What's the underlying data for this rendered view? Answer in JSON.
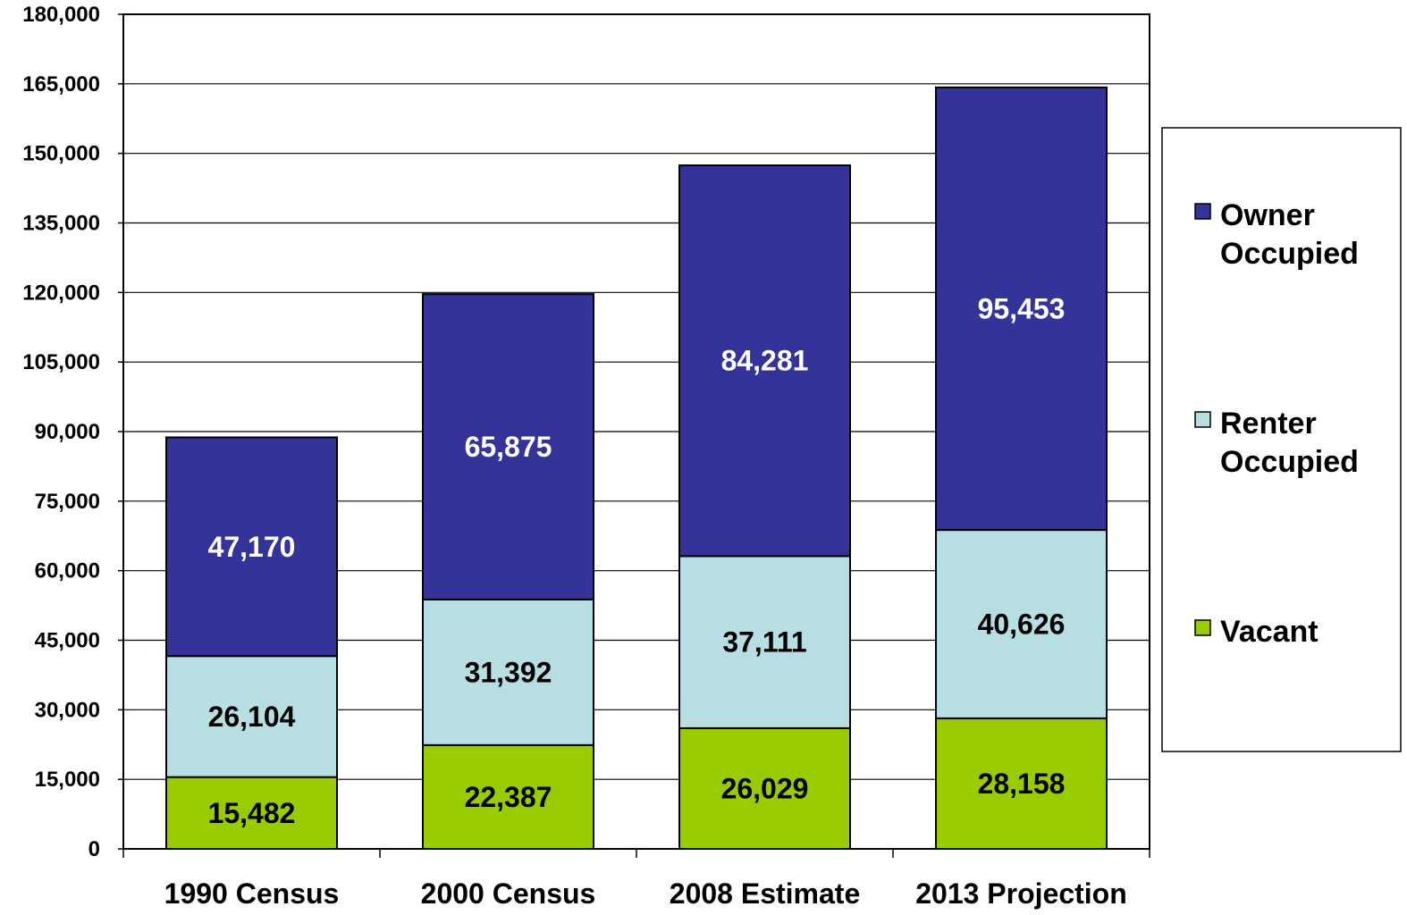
{
  "chart_data": {
    "type": "bar",
    "stacked": true,
    "categories": [
      "1990 Census",
      "2000 Census",
      "2008 Estimate",
      "2013 Projection"
    ],
    "series": [
      {
        "name": "Vacant",
        "values": [
          15482,
          22387,
          26029,
          28158
        ],
        "labels": [
          "15,482",
          "22,387",
          "26,029",
          "28,158"
        ],
        "color": "#99cc00",
        "label_color": "#000000"
      },
      {
        "name": "Renter Occupied",
        "values": [
          26104,
          31392,
          37111,
          40626
        ],
        "labels": [
          "26,104",
          "31,392",
          "37,111",
          "40,626"
        ],
        "color": "#b7dee3",
        "label_color": "#000000"
      },
      {
        "name": "Owner Occupied",
        "values": [
          47170,
          65875,
          84281,
          95453
        ],
        "labels": [
          "47,170",
          "65,875",
          "84,281",
          "95,453"
        ],
        "color": "#333399",
        "label_color": "#ffffff"
      }
    ],
    "legend": {
      "position": "right",
      "items": [
        {
          "lines": [
            "Owner",
            "Occupied"
          ],
          "color": "#333399"
        },
        {
          "lines": [
            "Renter",
            "Occupied"
          ],
          "color": "#b7dee3"
        },
        {
          "lines": [
            "Vacant"
          ],
          "color": "#99cc00"
        }
      ]
    },
    "yticks": [
      "0",
      "15,000",
      "30,000",
      "45,000",
      "60,000",
      "75,000",
      "90,000",
      "105,000",
      "120,000",
      "135,000",
      "150,000",
      "165,000",
      "180,000"
    ],
    "ylim": [
      0,
      180000
    ],
    "ytick_step": 15000,
    "grid": true,
    "title": "",
    "xlabel": "",
    "ylabel": ""
  }
}
